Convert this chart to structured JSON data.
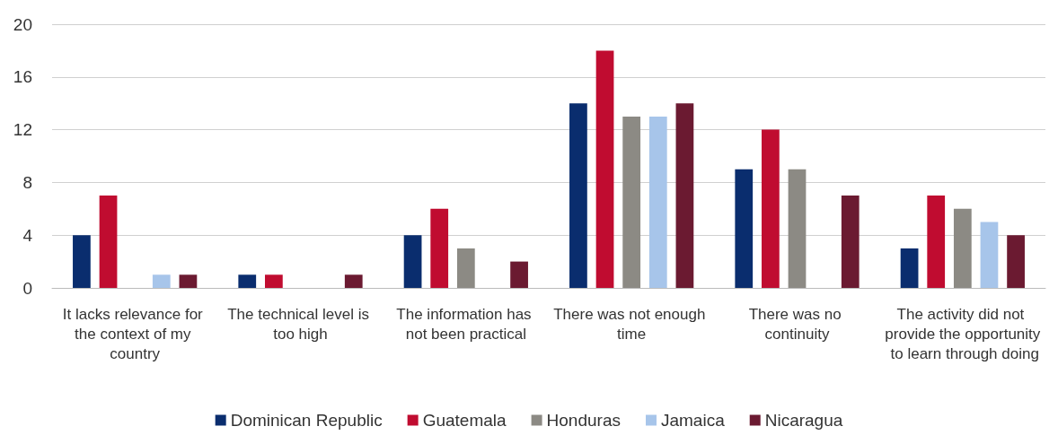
{
  "chart_data": {
    "type": "bar",
    "categories": [
      "It lacks relevance for the context of my country",
      "The technical level is too high",
      "The information has not been practical",
      "There was not enough time",
      "There was no continuity",
      "The activity did not provide the opportunity to learn through doing"
    ],
    "series": [
      {
        "name": "Dominican Republic",
        "color": "#0a2d6e",
        "values": [
          4,
          1,
          4,
          14,
          9,
          3
        ]
      },
      {
        "name": "Guatemala",
        "color": "#c00c30",
        "values": [
          7,
          1,
          6,
          18,
          12,
          7
        ]
      },
      {
        "name": "Honduras",
        "color": "#8c8a84",
        "values": [
          0,
          0,
          3,
          13,
          9,
          6
        ]
      },
      {
        "name": "Jamaica",
        "color": "#a7c5ea",
        "values": [
          1,
          0,
          0,
          13,
          0,
          5
        ]
      },
      {
        "name": "Nicaragua",
        "color": "#6b1a31",
        "values": [
          1,
          1,
          2,
          14,
          7,
          4
        ]
      }
    ],
    "ylim": [
      0,
      20
    ],
    "yticks": [
      0,
      4,
      8,
      12,
      16,
      20
    ],
    "grid": "y",
    "legend": "bottom"
  }
}
